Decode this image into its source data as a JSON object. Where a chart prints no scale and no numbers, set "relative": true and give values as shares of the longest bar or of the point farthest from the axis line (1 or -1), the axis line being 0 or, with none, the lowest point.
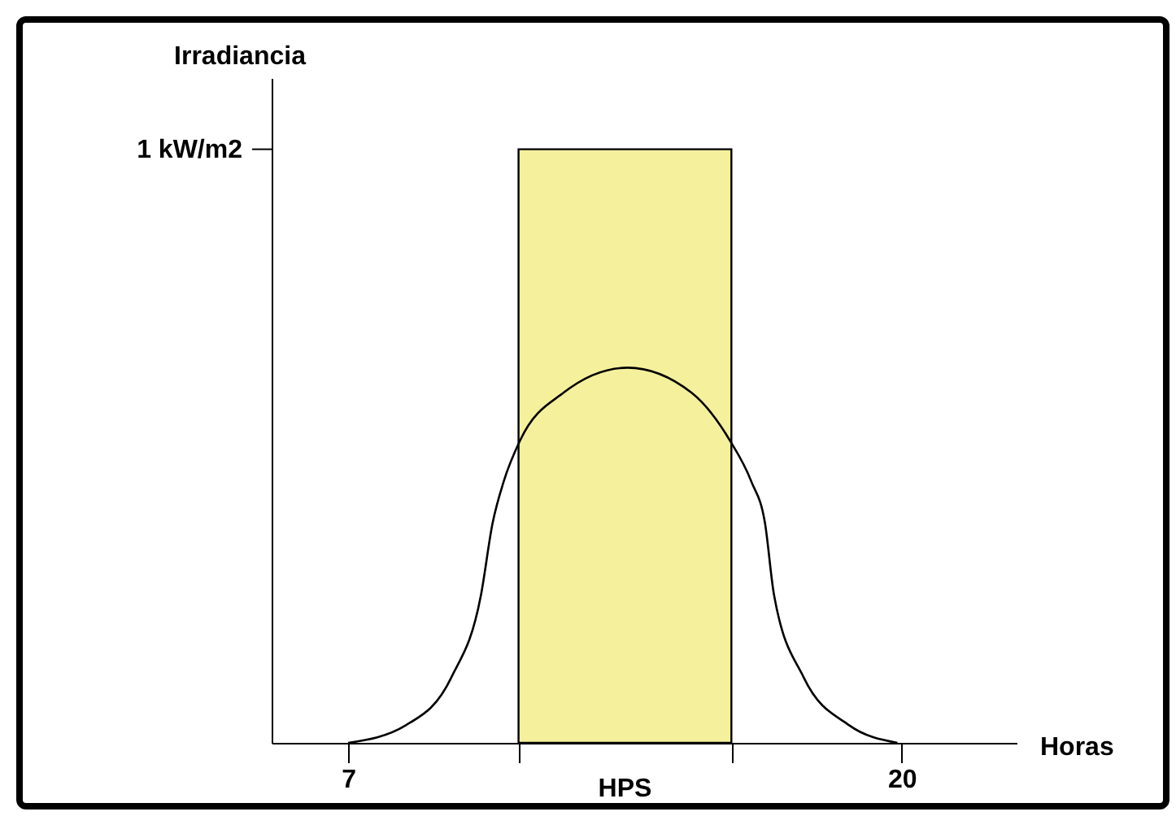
{
  "chart_data": {
    "type": "line",
    "relative": true,
    "xlabel": "Horas",
    "ylabel": "Irradiancia",
    "xlim": [
      5.2,
      22.7
    ],
    "xticks": [
      7,
      {
        "value": 11,
        "label": null
      },
      {
        "value": 16,
        "label": null
      },
      20
    ],
    "series": [
      {
        "type": "area",
        "color": "#f5f09c",
        "x": [
          11,
          16
        ],
        "values": [
          1,
          1
        ]
      },
      {
        "type": "line",
        "color": "#000000",
        "x": [
          7,
          8.36,
          9.42,
          10.12,
          10.39,
          10.65,
          11.04,
          12.06,
          13.56,
          15.06,
          15.96,
          16.47,
          16.79,
          17.0,
          17.7,
          18.76,
          19.9
        ],
        "values": [
          0,
          0.03,
          0.11,
          0.25,
          0.37,
          0.44,
          0.51,
          0.59,
          0.632,
          0.59,
          0.51,
          0.44,
          0.37,
          0.25,
          0.11,
          0.03,
          0
        ]
      }
    ],
    "annotations": [
      "1 kW/m2",
      "HPS"
    ],
    "grid": false,
    "marker": "none",
    "line_style": "solid"
  }
}
